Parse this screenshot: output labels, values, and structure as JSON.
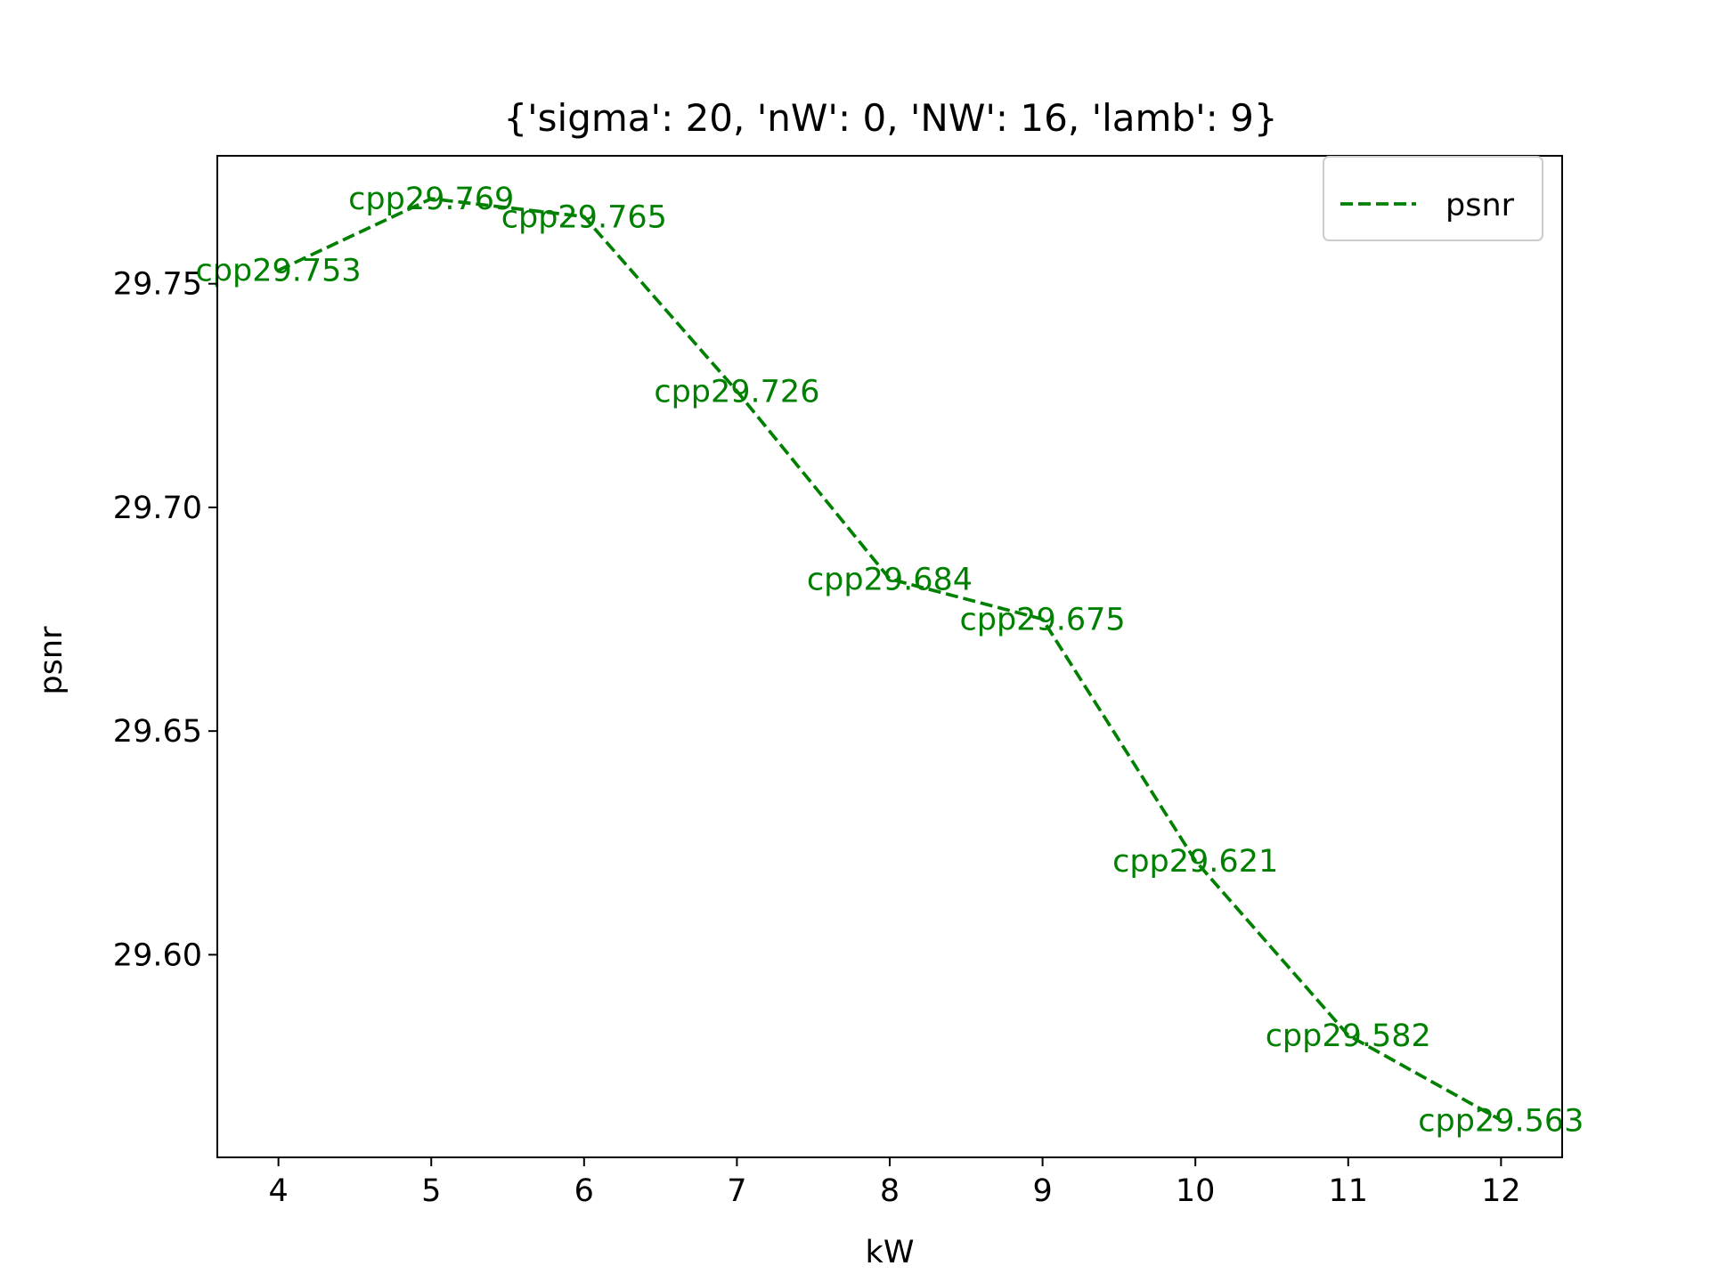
{
  "chart_data": {
    "type": "line",
    "title": "{'sigma': 20, 'nW': 0, 'NW': 16, 'lamb': 9}",
    "xlabel": "kW",
    "ylabel": "psnr",
    "x": [
      4,
      5,
      6,
      7,
      8,
      9,
      10,
      11,
      12
    ],
    "series": [
      {
        "name": "psnr",
        "values": [
          29.753,
          29.769,
          29.765,
          29.726,
          29.684,
          29.675,
          29.621,
          29.582,
          29.563
        ],
        "color": "#008000",
        "style": "dashed"
      }
    ],
    "data_labels": [
      "cpp29.753",
      "cpp29.769",
      "cpp29.765",
      "cpp29.726",
      "cpp29.684",
      "cpp29.675",
      "cpp29.621",
      "cpp29.582",
      "cpp29.563"
    ],
    "xlim": [
      3.6,
      12.4
    ],
    "ylim": [
      29.5547,
      29.7786
    ],
    "xticks": [
      4,
      5,
      6,
      7,
      8,
      9,
      10,
      11,
      12
    ],
    "xtick_labels": [
      "4",
      "5",
      "6",
      "7",
      "8",
      "9",
      "10",
      "11",
      "12"
    ],
    "yticks": [
      29.6,
      29.65,
      29.7,
      29.75
    ],
    "ytick_labels": [
      "29.60",
      "29.65",
      "29.70",
      "29.75"
    ],
    "grid": false,
    "legend_position": "top-right"
  }
}
